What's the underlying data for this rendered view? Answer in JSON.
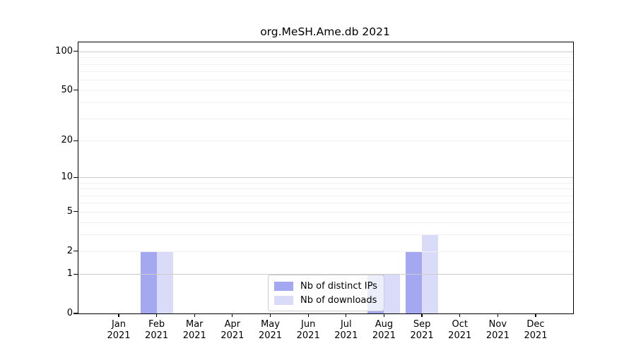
{
  "chart_data": {
    "type": "bar",
    "title": "org.MeSH.Ame.db 2021",
    "categories": [
      "Jan",
      "Feb",
      "Mar",
      "Apr",
      "May",
      "Jun",
      "Jul",
      "Aug",
      "Sep",
      "Oct",
      "Nov",
      "Dec"
    ],
    "category_year": "2021",
    "series": [
      {
        "name": "Nb of distinct IPs",
        "color": "#a3a8f0",
        "values": [
          0,
          2,
          0,
          0,
          0,
          0,
          0,
          1,
          2,
          0,
          0,
          0
        ]
      },
      {
        "name": "Nb of downloads",
        "color": "#d9dbf8",
        "values": [
          0,
          2,
          0,
          0,
          0,
          0,
          0,
          1,
          3,
          0,
          0,
          0
        ]
      }
    ],
    "xlabel": "",
    "ylabel": "",
    "y_axis": {
      "scale": "log10(value+1)",
      "tick_values": [
        0,
        1,
        2,
        5,
        10,
        20,
        50,
        100
      ],
      "range": [
        0,
        117
      ]
    },
    "grid": {
      "on": true,
      "minor_values": [
        2,
        3,
        4,
        5,
        6,
        7,
        8,
        9,
        20,
        30,
        40,
        50,
        60,
        70,
        80,
        90
      ],
      "major_values": [
        1,
        10,
        100
      ],
      "minor_color": "#f0f0f0",
      "major_color": "#cbcbcb"
    },
    "legend_position": "bottom-center-inside"
  }
}
